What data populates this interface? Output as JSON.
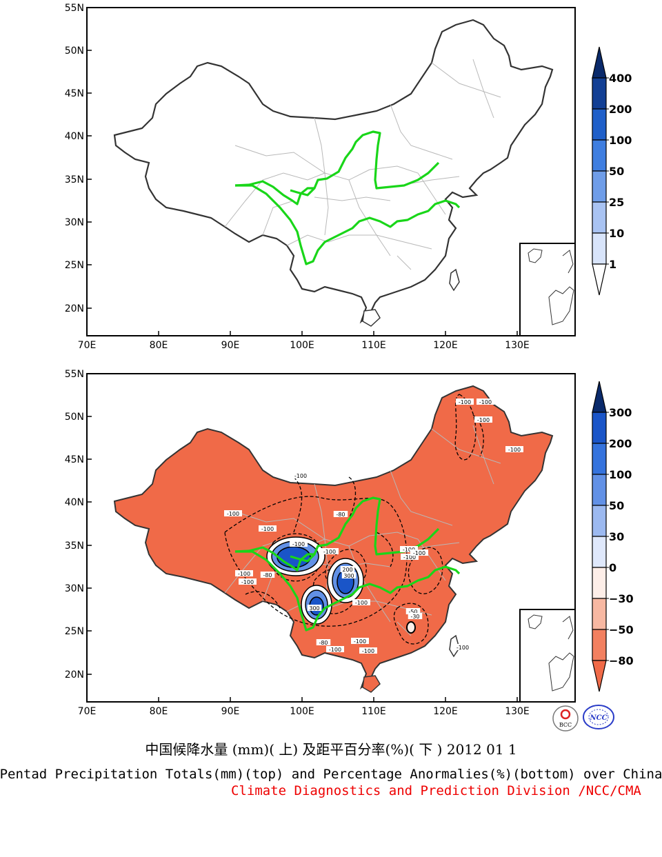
{
  "top_panel": {
    "lat_labels": [
      "55N",
      "50N",
      "45N",
      "40N",
      "35N",
      "30N",
      "25N",
      "20N"
    ],
    "lon_labels": [
      "70E",
      "80E",
      "90E",
      "100E",
      "110E",
      "120E",
      "130E"
    ],
    "colorbar_labels": [
      "400",
      "200",
      "100",
      "50",
      "25",
      "10",
      "1"
    ],
    "colorbar_colors": [
      "#0a2a6b",
      "#123f94",
      "#1f5fc9",
      "#3f7ee0",
      "#6f9de8",
      "#a9c3f2",
      "#d8e4fa",
      "#ffffff"
    ]
  },
  "bottom_panel": {
    "lat_labels": [
      "55N",
      "50N",
      "45N",
      "40N",
      "35N",
      "30N",
      "25N",
      "20N"
    ],
    "lon_labels": [
      "70E",
      "80E",
      "90E",
      "100E",
      "110E",
      "120E",
      "130E"
    ],
    "colorbar_labels": [
      "300",
      "200",
      "100",
      "50",
      "30",
      "0",
      "−30",
      "−50",
      "−80"
    ],
    "colorbar_colors": [
      "#0a2a6b",
      "#1a55c8",
      "#3573dd",
      "#6291e6",
      "#9cb9f0",
      "#dfe8fb",
      "#fdeee8",
      "#f7b8a2",
      "#f28060",
      "#f06a48"
    ],
    "contour_labels": [
      "-100",
      "-100",
      "-100",
      "-100",
      "-100",
      "-100",
      "-80",
      "-100",
      "-100",
      "-80",
      "-100",
      "-100",
      "-100",
      "-100",
      "-100",
      "-100",
      "-80",
      "-100",
      "-100",
      "-100",
      "-50",
      "-30",
      "-100",
      "-100",
      "300",
      "200",
      "300"
    ],
    "fill_color": "#f06a48"
  },
  "captions": {
    "title_cn": "中国候降水量 (mm)( 上) 及距平百分率(%)( 下 ) 2012 01 1",
    "title_en": "Pentad Precipitation Totals(mm)(top) and Percentage Anormalies(%)(bottom) over China",
    "credit": "Climate Diagnostics and Prediction Division /NCC/CMA"
  },
  "logos": {
    "left": "BCC",
    "right": "NCC"
  },
  "colors": {
    "river": "#19d619",
    "border": "#333333",
    "province": "#b8b8b8",
    "credit": "#ee0000"
  }
}
